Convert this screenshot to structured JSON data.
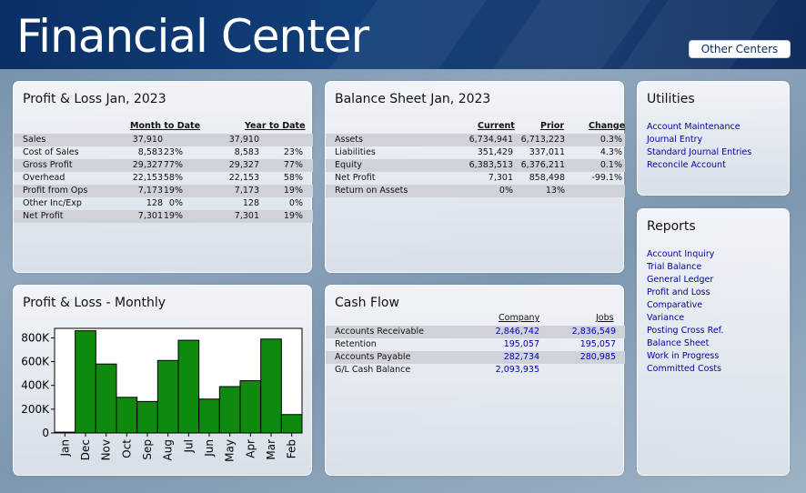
{
  "header": {
    "title": "Financial Center",
    "other_centers_label": "Other Centers"
  },
  "pl_ytd": {
    "title": "Profit & Loss Jan, 2023",
    "col_month": "Month to Date",
    "col_year": "Year to Date",
    "rows": [
      {
        "label": "Sales",
        "mtd": "37,910",
        "mtd_pct": "",
        "ytd": "37,910",
        "ytd_pct": ""
      },
      {
        "label": "Cost of Sales",
        "mtd": "8,583",
        "mtd_pct": "23%",
        "ytd": "8,583",
        "ytd_pct": "23%"
      },
      {
        "label": "Gross Profit",
        "mtd": "29,327",
        "mtd_pct": "77%",
        "ytd": "29,327",
        "ytd_pct": "77%"
      },
      {
        "label": "Overhead",
        "mtd": "22,153",
        "mtd_pct": "58%",
        "ytd": "22,153",
        "ytd_pct": "58%"
      },
      {
        "label": "Profit from Ops",
        "mtd": "7,173",
        "mtd_pct": "19%",
        "ytd": "7,173",
        "ytd_pct": "19%"
      },
      {
        "label": "Other Inc/Exp",
        "mtd": "128",
        "mtd_pct": "0%",
        "ytd": "128",
        "ytd_pct": "0%"
      },
      {
        "label": "Net Profit",
        "mtd": "7,301",
        "mtd_pct": "19%",
        "ytd": "7,301",
        "ytd_pct": "19%"
      }
    ]
  },
  "balance": {
    "title": "Balance Sheet Jan, 2023",
    "col_current": "Current",
    "col_prior": "Prior",
    "col_change": "Change",
    "rows": [
      {
        "label": "Assets",
        "current": "6,734,941",
        "prior": "6,713,223",
        "change": "0.3%"
      },
      {
        "label": "Liabilities",
        "current": "351,429",
        "prior": "337,011",
        "change": "4.3%"
      },
      {
        "label": "Equity",
        "current": "6,383,513",
        "prior": "6,376,211",
        "change": "0.1%"
      },
      {
        "label": "Net Profit",
        "current": "7,301",
        "prior": "858,498",
        "change": "-99.1%"
      },
      {
        "label": "Return on Assets",
        "current": "0%",
        "prior": "13%",
        "change": ""
      }
    ]
  },
  "utilities": {
    "title": "Utilities",
    "links": [
      "Account Maintenance",
      "Journal Entry",
      "Standard Journal Entries",
      "Reconcile Account"
    ]
  },
  "reports": {
    "title": "Reports",
    "links": [
      "Account Inquiry",
      "Trial Balance",
      "General Ledger",
      "Profit and Loss",
      "Comparative",
      "Variance",
      "Posting Cross Ref.",
      "Balance Sheet",
      "Work in Progress",
      "Committed Costs"
    ]
  },
  "pl_monthly": {
    "title": "Profit & Loss - Monthly"
  },
  "cashflow": {
    "title": "Cash Flow",
    "col_company": "Company",
    "col_jobs": "Jobs",
    "rows": [
      {
        "label": "Accounts Receivable",
        "company": "2,846,742",
        "jobs": "2,836,549"
      },
      {
        "label": "Retention",
        "company": "195,057",
        "jobs": "195,057"
      },
      {
        "label": "Accounts Payable",
        "company": "282,734",
        "jobs": "280,985"
      },
      {
        "label": "G/L Cash Balance",
        "company": "2,093,935",
        "jobs": ""
      }
    ]
  },
  "colors": {
    "bar": "#0e8a0e",
    "link": "#0000a8",
    "header": "#0a2f66"
  },
  "chart_data": {
    "type": "bar",
    "title": "Profit & Loss - Monthly",
    "categories": [
      "Jan",
      "Dec",
      "Nov",
      "Oct",
      "Sep",
      "Aug",
      "Jul",
      "Jun",
      "May",
      "Apr",
      "Mar",
      "Feb"
    ],
    "values": [
      7000,
      860000,
      580000,
      300000,
      265000,
      610000,
      780000,
      285000,
      390000,
      440000,
      790000,
      155000
    ],
    "ylim": [
      0,
      880000
    ],
    "yticks": [
      0,
      200000,
      400000,
      600000,
      800000
    ],
    "ytick_labels": [
      "0",
      "200K",
      "400K",
      "600K",
      "800K"
    ],
    "xlabel": "",
    "ylabel": ""
  }
}
